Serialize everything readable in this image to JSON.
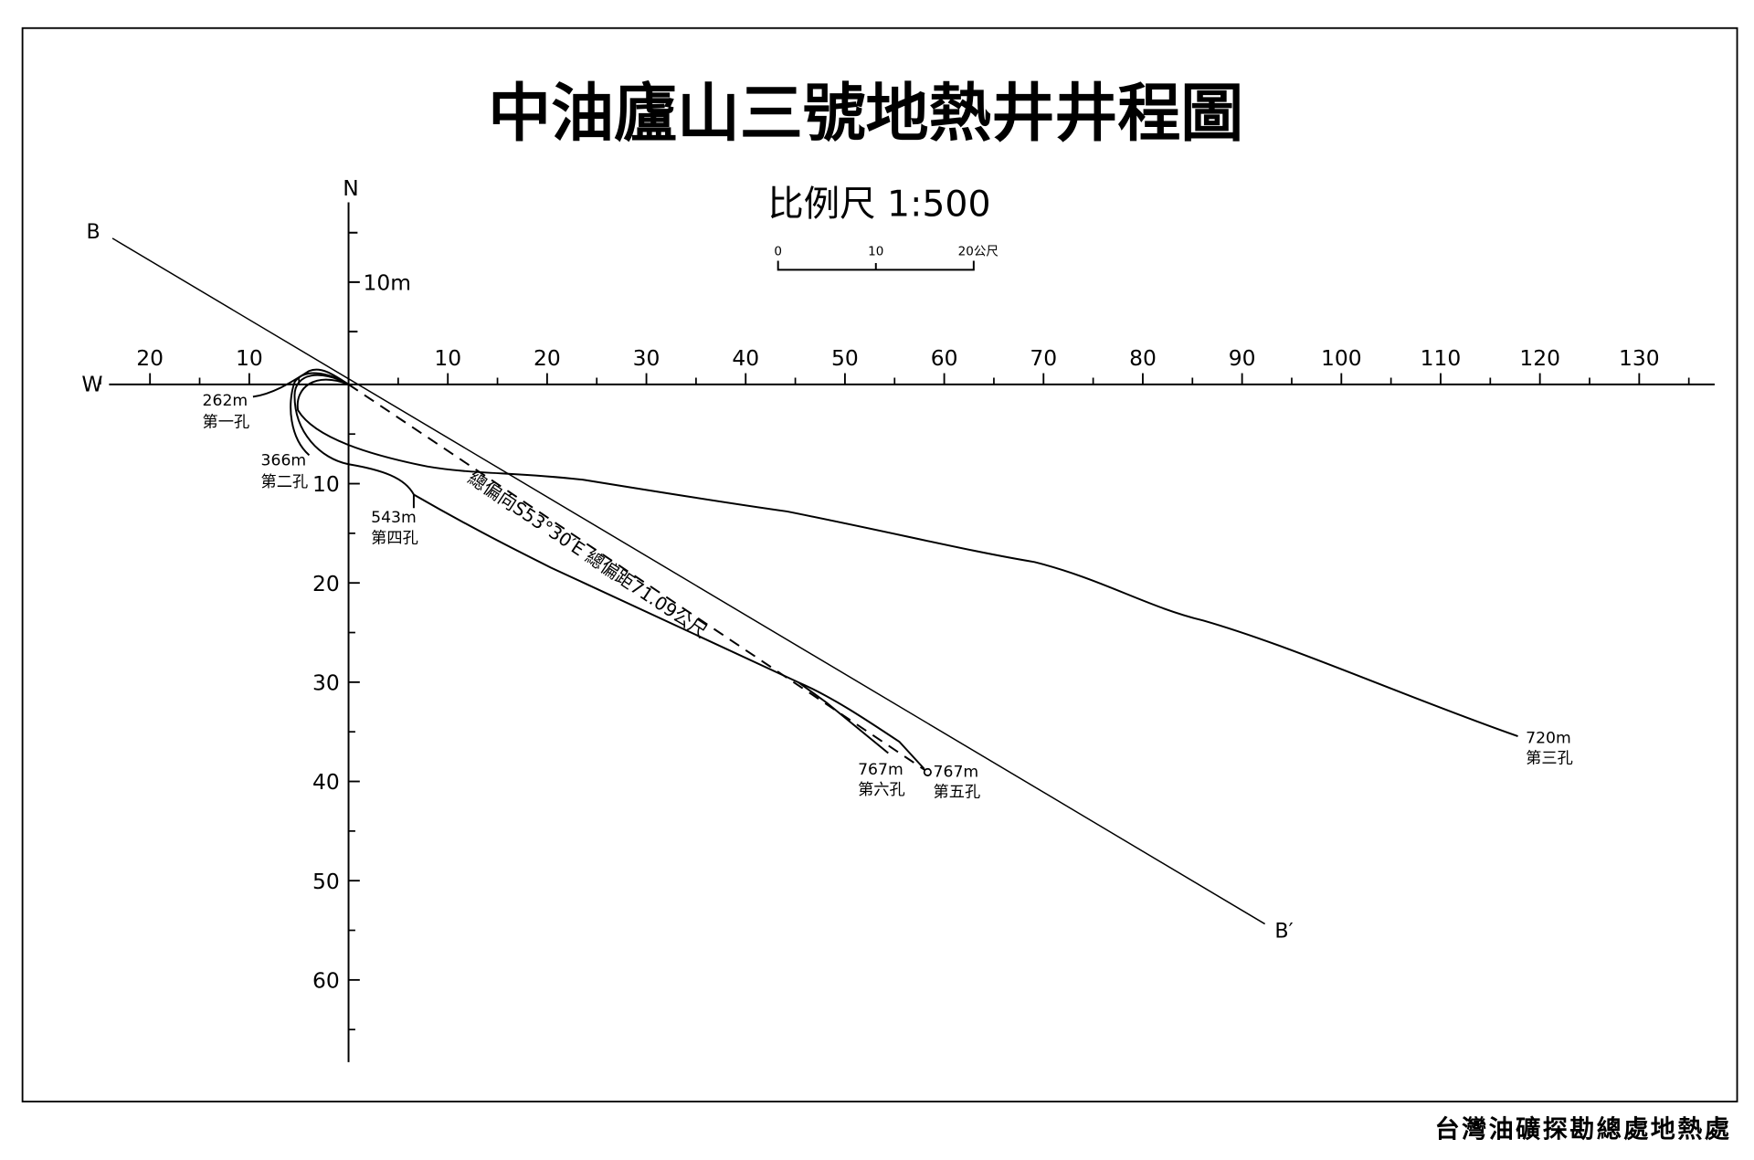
{
  "title": "中油廬山三號地熱井井程圖",
  "scale": {
    "label": "比例尺  1:500",
    "ticks": [
      "0",
      "10",
      "20公尺"
    ]
  },
  "axes": {
    "north": "N",
    "west": "W",
    "unit_label": "10m",
    "x_ticks_west": [
      20,
      10
    ],
    "x_ticks_east": [
      10,
      20,
      30,
      40,
      50,
      60,
      70,
      80,
      90,
      100,
      110,
      120,
      130
    ],
    "y_ticks": [
      10,
      20,
      30,
      40,
      50,
      60
    ]
  },
  "section": {
    "start": "B",
    "end": "B′"
  },
  "annotation": "總偏向S53°30′E 總偏距71.09公尺",
  "wells": [
    {
      "depth": "262m",
      "name": "第一孔"
    },
    {
      "depth": "366m",
      "name": "第二孔"
    },
    {
      "depth": "720m",
      "name": "第三孔"
    },
    {
      "depth": "543m",
      "name": "第四孔"
    },
    {
      "depth": "767m",
      "name": "第五孔"
    },
    {
      "depth": "767m",
      "name": "第六孔"
    }
  ],
  "footer": "台灣油礦探勘總處地熱處"
}
